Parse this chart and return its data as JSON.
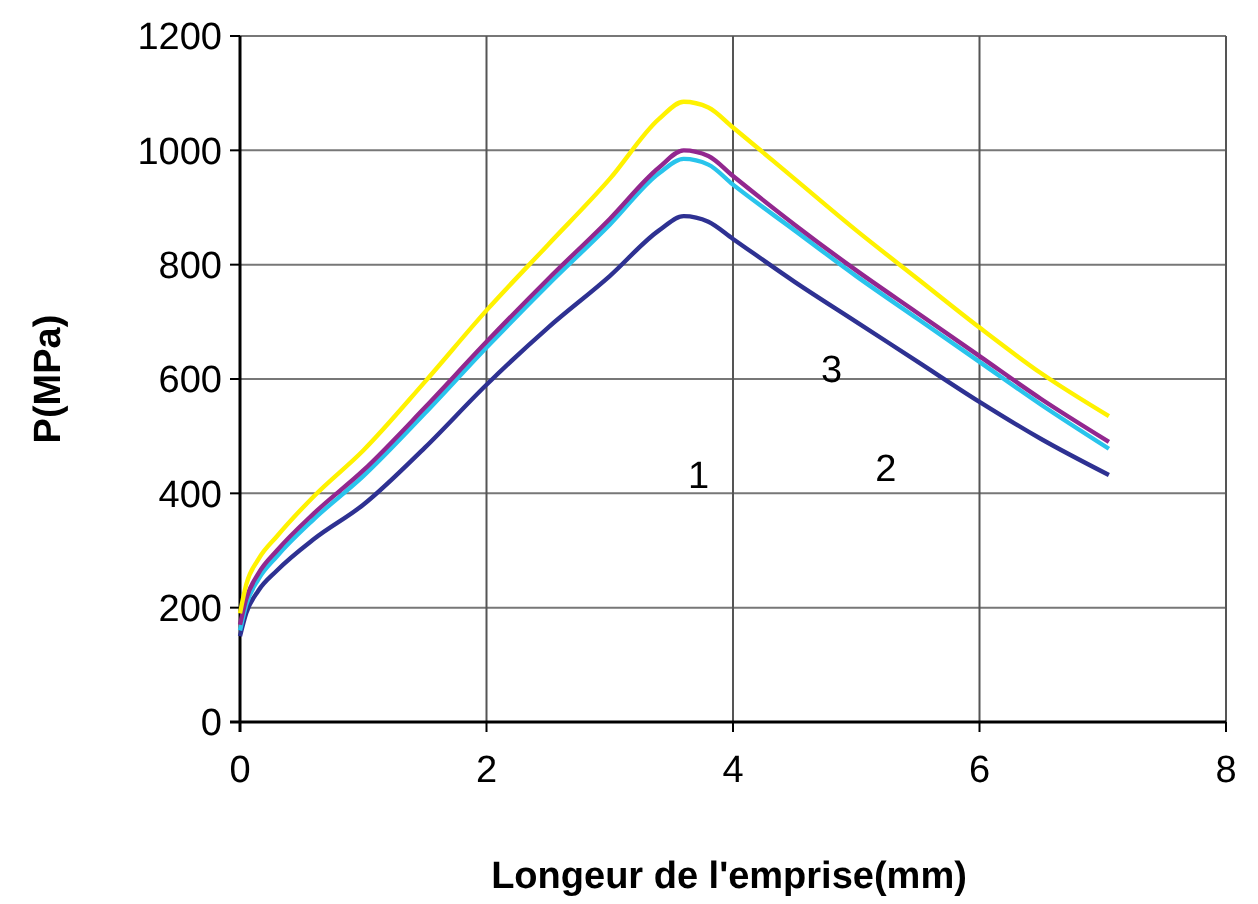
{
  "chart_data": {
    "type": "line",
    "xlabel": "Longeur de l'emprise(mm)",
    "ylabel": "P(MPa)",
    "x": [
      0,
      0.05,
      0.15,
      0.3,
      0.6,
      1,
      1.5,
      2,
      2.5,
      3,
      3.4,
      3.6,
      3.8,
      4,
      4.5,
      5,
      5.5,
      6,
      6.5,
      7.05
    ],
    "series": [
      {
        "color": "#2e3192",
        "values": [
          150,
          190,
          230,
          265,
          320,
          380,
          480,
          590,
          690,
          780,
          860,
          885,
          875,
          845,
          770,
          700,
          630,
          560,
          495,
          432
        ]
      },
      {
        "color": "#29c4ec",
        "values": [
          160,
          205,
          250,
          290,
          355,
          430,
          540,
          655,
          765,
          870,
          960,
          985,
          975,
          940,
          860,
          780,
          705,
          630,
          555,
          478
        ]
      },
      {
        "color": "#92278f",
        "values": [
          170,
          215,
          260,
          300,
          365,
          440,
          550,
          665,
          775,
          880,
          970,
          1000,
          990,
          955,
          870,
          790,
          715,
          640,
          565,
          490
        ]
      },
      {
        "color": "#fff200",
        "values": [
          190,
          240,
          285,
          325,
          395,
          475,
          595,
          720,
          835,
          950,
          1055,
          1085,
          1075,
          1040,
          950,
          860,
          775,
          690,
          610,
          535
        ]
      }
    ],
    "xlim": [
      0,
      8
    ],
    "xticks": [
      0,
      2,
      4,
      6,
      8
    ],
    "ylim": [
      0,
      1200
    ],
    "yticks": [
      0,
      200,
      400,
      600,
      800,
      1000,
      1200
    ],
    "grid": true,
    "line_style": "solid",
    "annotations": [
      "1",
      "3",
      "2"
    ]
  }
}
